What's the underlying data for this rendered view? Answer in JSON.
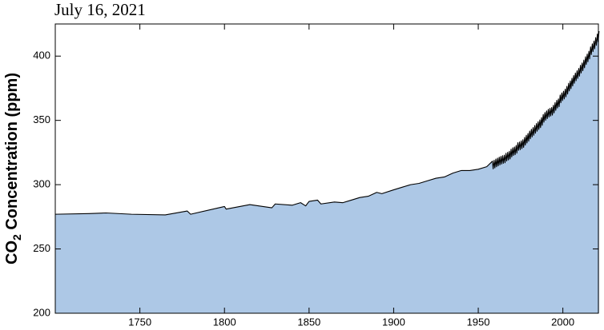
{
  "chart_data": {
    "type": "area",
    "title": "July 16, 2021",
    "ylabel_parts": [
      "CO",
      "2",
      " Concentration (ppm)"
    ],
    "color": "#adc8e6",
    "line_color": "#000000",
    "xlim": [
      1700,
      2021
    ],
    "ylim": [
      200,
      425
    ],
    "xticks": [
      1750,
      1800,
      1850,
      1900,
      1950,
      2000
    ],
    "yticks": [
      200,
      250,
      300,
      350,
      400
    ],
    "x": [
      1700,
      1720,
      1730,
      1745,
      1765,
      1778,
      1780,
      1800,
      1801,
      1815,
      1828,
      1830,
      1840,
      1845,
      1848,
      1850,
      1855,
      1857,
      1865,
      1870,
      1875,
      1880,
      1885,
      1890,
      1893,
      1900,
      1905,
      1910,
      1915,
      1920,
      1925,
      1930,
      1935,
      1940,
      1945,
      1950,
      1955,
      1958.4,
      1958.8,
      1959.4,
      1959.8,
      1960.4,
      1960.8,
      1961.4,
      1961.8,
      1962.4,
      1962.8,
      1963.4,
      1963.8,
      1964.4,
      1964.8,
      1965.4,
      1965.8,
      1966.4,
      1966.8,
      1967.4,
      1967.8,
      1968.4,
      1968.8,
      1969.4,
      1969.8,
      1970.4,
      1970.8,
      1971.4,
      1971.8,
      1972.4,
      1972.8,
      1973.4,
      1973.8,
      1974.4,
      1974.8,
      1975.4,
      1975.8,
      1976.4,
      1976.8,
      1977.4,
      1977.8,
      1978.4,
      1978.8,
      1979.4,
      1979.8,
      1980.4,
      1980.8,
      1981.4,
      1981.8,
      1982.4,
      1982.8,
      1983.4,
      1983.8,
      1984.4,
      1984.8,
      1985.4,
      1985.8,
      1986.4,
      1986.8,
      1987.4,
      1987.8,
      1988.4,
      1988.8,
      1989.4,
      1989.8,
      1990.4,
      1990.8,
      1991.4,
      1991.8,
      1992.4,
      1992.8,
      1993.4,
      1993.8,
      1994.4,
      1994.8,
      1995.4,
      1995.8,
      1996.4,
      1996.8,
      1997.4,
      1997.8,
      1998.4,
      1998.8,
      1999.4,
      1999.8,
      2000.4,
      2000.8,
      2001.4,
      2001.8,
      2002.4,
      2002.8,
      2003.4,
      2003.8,
      2004.4,
      2004.8,
      2005.4,
      2005.8,
      2006.4,
      2006.8,
      2007.4,
      2007.8,
      2008.4,
      2008.8,
      2009.4,
      2009.8,
      2010.4,
      2010.8,
      2011.4,
      2011.8,
      2012.4,
      2012.8,
      2013.4,
      2013.8,
      2014.4,
      2014.8,
      2015.4,
      2015.8,
      2016.4,
      2016.8,
      2017.4,
      2017.8,
      2018.4,
      2018.8,
      2019.4,
      2019.8,
      2020.4,
      2020.8,
      2021.4
    ],
    "values": [
      277,
      277.5,
      278,
      277,
      276.5,
      279.5,
      277,
      283,
      281,
      284.5,
      282,
      285,
      284,
      286,
      283.5,
      287,
      288,
      285,
      286.5,
      286,
      288,
      290,
      291,
      294,
      293,
      296,
      298,
      300,
      301,
      303,
      305,
      306,
      309,
      311,
      311,
      312,
      314,
      318.3,
      312.3,
      319,
      313,
      319.9,
      313.9,
      320.6,
      314.6,
      321.4,
      315.4,
      322,
      316,
      322.6,
      316.6,
      323,
      317,
      324.4,
      318.4,
      325.2,
      319.2,
      326,
      320,
      327.6,
      321.6,
      328.7,
      322.7,
      329.3,
      323.3,
      330.5,
      324.5,
      332.7,
      326.7,
      333.2,
      327.2,
      334.1,
      328.1,
      335,
      329,
      336.8,
      330.8,
      338.4,
      332.4,
      339.8,
      333.8,
      341.7,
      335.7,
      343.1,
      337.1,
      344.4,
      338.4,
      346,
      340,
      347.6,
      341.6,
      349,
      343,
      350.4,
      344.4,
      352.2,
      346.2,
      354.6,
      348.6,
      356.1,
      350.1,
      357.4,
      351.4,
      358.6,
      352.6,
      359.4,
      353.4,
      360.1,
      354.1,
      361.8,
      355.8,
      363.8,
      357.8,
      365.6,
      359.6,
      366.7,
      360.7,
      369.7,
      363.7,
      371.4,
      365.4,
      372.7,
      366.7,
      374.3,
      368.3,
      376.5,
      370.5,
      378.9,
      372.9,
      380.7,
      374.7,
      382.8,
      376.8,
      384.9,
      378.9,
      386.8,
      380.8,
      388.6,
      382.6,
      390.4,
      384.4,
      392.9,
      386.9,
      394.7,
      388.7,
      396.9,
      390.9,
      399.5,
      393.5,
      401.6,
      395.6,
      403.8,
      397.8,
      407.2,
      401.2,
      409.5,
      403.5,
      411.7,
      405.7,
      414.4,
      408.4,
      417.2,
      411.2,
      419.4
    ]
  }
}
